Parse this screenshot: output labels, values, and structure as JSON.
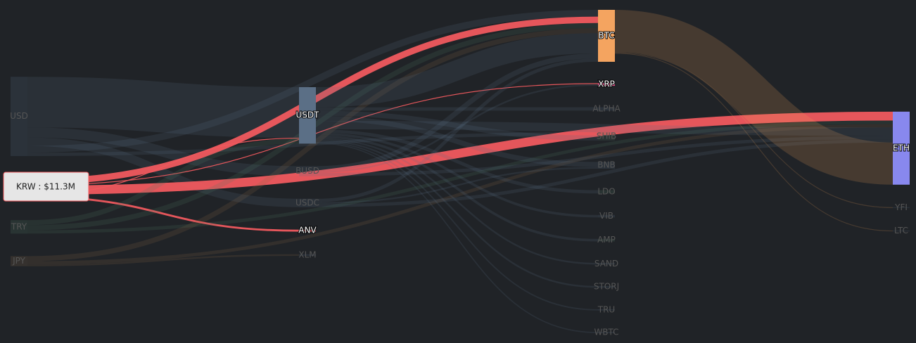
{
  "chart_data": {
    "type": "sankey",
    "highlight": "KRW",
    "tooltip": "KRW : $11.3M",
    "nodes": [
      {
        "name": "USD",
        "color": "#5b6f86"
      },
      {
        "name": "KRW",
        "color": "#f05a5e"
      },
      {
        "name": "TRY",
        "color": "#4f7a66"
      },
      {
        "name": "JPY",
        "color": "#8a6a4a"
      },
      {
        "name": "USDT",
        "color": "#5b6f86"
      },
      {
        "name": "BUSD",
        "color": "#5b6f86"
      },
      {
        "name": "USDC",
        "color": "#5b6f86"
      },
      {
        "name": "ANV",
        "color": "#f05a5e"
      },
      {
        "name": "XLM",
        "color": "#5b6f86"
      },
      {
        "name": "BTC",
        "color": "#f4a460"
      },
      {
        "name": "XRP",
        "color": "#e8508a"
      },
      {
        "name": "ALPHA",
        "color": "#5b6f86"
      },
      {
        "name": "SHIB",
        "color": "#4f7a66"
      },
      {
        "name": "BNB",
        "color": "#5b6f86"
      },
      {
        "name": "LDO",
        "color": "#4f7a66"
      },
      {
        "name": "VIB",
        "color": "#5b6f86"
      },
      {
        "name": "AMP",
        "color": "#4f7a66"
      },
      {
        "name": "SAND",
        "color": "#5b6f86"
      },
      {
        "name": "STORJ",
        "color": "#5b6f86"
      },
      {
        "name": "TRU",
        "color": "#5b6f86"
      },
      {
        "name": "WBTC",
        "color": "#5b6f86"
      },
      {
        "name": "ETH",
        "color": "#8888ee"
      },
      {
        "name": "YFI",
        "color": "#5b6f86"
      },
      {
        "name": "LTC",
        "color": "#5b6f86"
      }
    ],
    "links": [
      {
        "source": "USD",
        "target": "USDT",
        "value": 30
      },
      {
        "source": "USD",
        "target": "BUSD",
        "value": 6
      },
      {
        "source": "USD",
        "target": "USDC",
        "value": 5
      },
      {
        "source": "USD",
        "target": "BTC",
        "value": 4
      },
      {
        "source": "USD",
        "target": "SHIB",
        "value": 2
      },
      {
        "source": "KRW",
        "target": "BTC",
        "value": 3.8
      },
      {
        "source": "KRW",
        "target": "XRP",
        "value": 0.5
      },
      {
        "source": "KRW",
        "target": "ETH",
        "value": 5.3
      },
      {
        "source": "KRW",
        "target": "USDT",
        "value": 0.5
      },
      {
        "source": "KRW",
        "target": "ANV",
        "value": 1.2
      },
      {
        "source": "TRY",
        "target": "USDT",
        "value": 3
      },
      {
        "source": "TRY",
        "target": "BTC",
        "value": 3
      },
      {
        "source": "TRY",
        "target": "ETH",
        "value": 2
      },
      {
        "source": "JPY",
        "target": "BTC",
        "value": 3
      },
      {
        "source": "JPY",
        "target": "ETH",
        "value": 2
      },
      {
        "source": "JPY",
        "target": "XLM",
        "value": 1
      },
      {
        "source": "USDT",
        "target": "BTC",
        "value": 12
      },
      {
        "source": "USDT",
        "target": "ALPHA",
        "value": 2
      },
      {
        "source": "USDT",
        "target": "SHIB",
        "value": 3
      },
      {
        "source": "USDT",
        "target": "BNB",
        "value": 3
      },
      {
        "source": "USDT",
        "target": "ETH",
        "value": 5
      },
      {
        "source": "USDT",
        "target": "LDO",
        "value": 2
      },
      {
        "source": "USDT",
        "target": "VIB",
        "value": 1.5
      },
      {
        "source": "USDT",
        "target": "AMP",
        "value": 1.5
      },
      {
        "source": "USDT",
        "target": "SAND",
        "value": 1
      },
      {
        "source": "USDT",
        "target": "STORJ",
        "value": 1
      },
      {
        "source": "USDT",
        "target": "TRU",
        "value": 0.8
      },
      {
        "source": "USDT",
        "target": "WBTC",
        "value": 0.7
      },
      {
        "source": "BUSD",
        "target": "BTC",
        "value": 3
      },
      {
        "source": "BUSD",
        "target": "XRP",
        "value": 1
      },
      {
        "source": "BUSD",
        "target": "ETH",
        "value": 2
      },
      {
        "source": "USDC",
        "target": "BTC",
        "value": 2
      },
      {
        "source": "USDC",
        "target": "BNB",
        "value": 1
      },
      {
        "source": "USDC",
        "target": "ETH",
        "value": 2
      },
      {
        "source": "BTC",
        "target": "ETH",
        "value": 25
      },
      {
        "source": "BTC",
        "target": "YFI",
        "value": 0.5
      },
      {
        "source": "BTC",
        "target": "LTC",
        "value": 0.5
      }
    ]
  }
}
